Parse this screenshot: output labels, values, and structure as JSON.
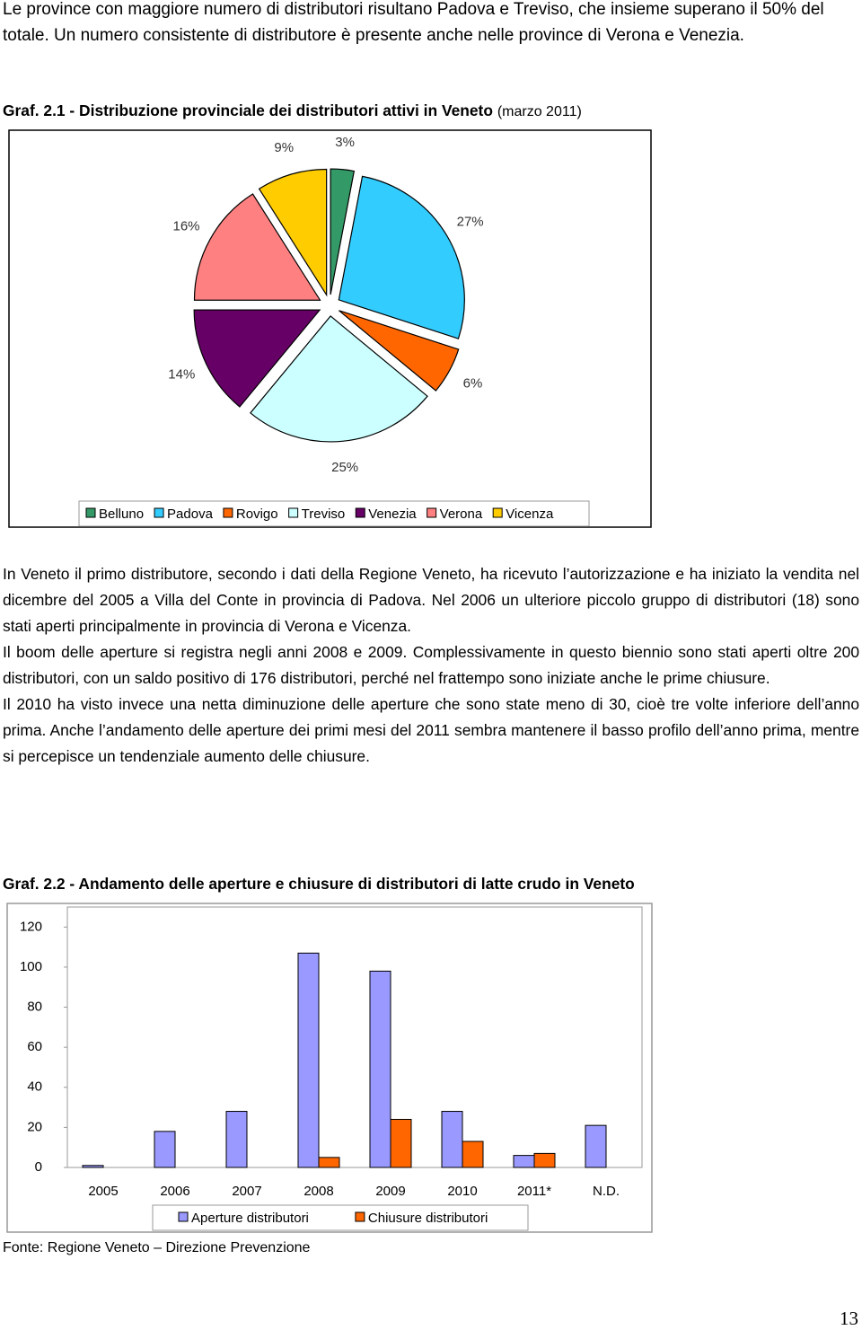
{
  "intro": "Le province con maggiore numero di distributori risultano Padova e Treviso, che insieme superano il 50%  del totale. Un numero consistente di distributore è presente anche nelle province di Verona e Venezia.",
  "chart_data": [
    {
      "type": "pie",
      "title": "Graf. 2.1 - Distribuzione provinciale dei distributori attivi in Veneto",
      "subtitle": "(marzo 2011)",
      "categories": [
        "Belluno",
        "Padova",
        "Rovigo",
        "Treviso",
        "Venezia",
        "Verona",
        "Vicenza"
      ],
      "values": [
        3,
        27,
        6,
        25,
        14,
        16,
        9
      ],
      "value_labels": [
        "3%",
        "27%",
        "6%",
        "25%",
        "14%",
        "16%",
        "9%"
      ],
      "colors": [
        "#339966",
        "#33ccff",
        "#ff6600",
        "#ccffff",
        "#660066",
        "#ff8080",
        "#ffcc00"
      ],
      "legend": "bottom"
    },
    {
      "type": "bar",
      "title": "Graf. 2.2 - Andamento delle aperture e chiusure di distributori di latte crudo in Veneto",
      "categories": [
        "2005",
        "2006",
        "2007",
        "2008",
        "2009",
        "2010",
        "2011*",
        "N.D."
      ],
      "series": [
        {
          "name": "Aperture distributori",
          "color": "#9999ff",
          "values": [
            1,
            18,
            28,
            107,
            98,
            28,
            6,
            21
          ]
        },
        {
          "name": "Chiusure distributori",
          "color": "#ff6600",
          "values": [
            0,
            0,
            0,
            5,
            24,
            13,
            7,
            0
          ]
        }
      ],
      "ylim": [
        0,
        130
      ],
      "yticks": [
        0,
        20,
        40,
        60,
        80,
        100,
        120
      ],
      "grid": false,
      "legend": "bottom"
    }
  ],
  "paragraphs": [
    "In Veneto il primo distributore, secondo i dati della Regione Veneto, ha ricevuto l’autorizzazione e ha iniziato la vendita nel dicembre del 2005 a Villa del Conte in provincia di Padova. Nel 2006 un ulteriore piccolo gruppo di distributori (18) sono stati aperti principalmente in provincia di Verona e Vicenza.",
    "Il boom delle aperture si registra negli anni 2008 e 2009. Complessivamente in questo biennio sono stati aperti oltre 200 distributori, con un saldo positivo di 176 distributori, perché nel frattempo sono iniziate anche le prime chiusure.",
    "Il 2010 ha visto invece una netta diminuzione delle aperture che sono state meno di 30, cioè tre volte inferiore dell’anno prima. Anche l’andamento delle aperture dei primi mesi del 2011 sembra mantenere il basso profilo dell’anno prima, mentre si percepisce un tendenziale aumento delle chiusure."
  ],
  "source": "Fonte:  Regione Veneto – Direzione Prevenzione",
  "page_number": "13"
}
